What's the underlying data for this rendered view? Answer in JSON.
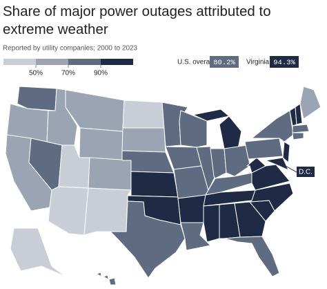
{
  "title": "Share of major power outages attributed to extreme weather",
  "subtitle": "Reported by utility companies; 2000 to 2023",
  "legend": {
    "colors": [
      "#c9ced6",
      "#9aa4b2",
      "#5f6b80",
      "#1f2a44"
    ],
    "ticks": [
      {
        "value": 50,
        "label": "50%"
      },
      {
        "value": 70,
        "label": "70%"
      },
      {
        "value": 90,
        "label": "90%"
      }
    ]
  },
  "callouts": {
    "labels": [
      "U.S. overall",
      "Virginia"
    ],
    "values": [
      80.2,
      94.3
    ],
    "value_labels": [
      "80.2%",
      "94.3%"
    ]
  },
  "annotation": "D.C."
}
